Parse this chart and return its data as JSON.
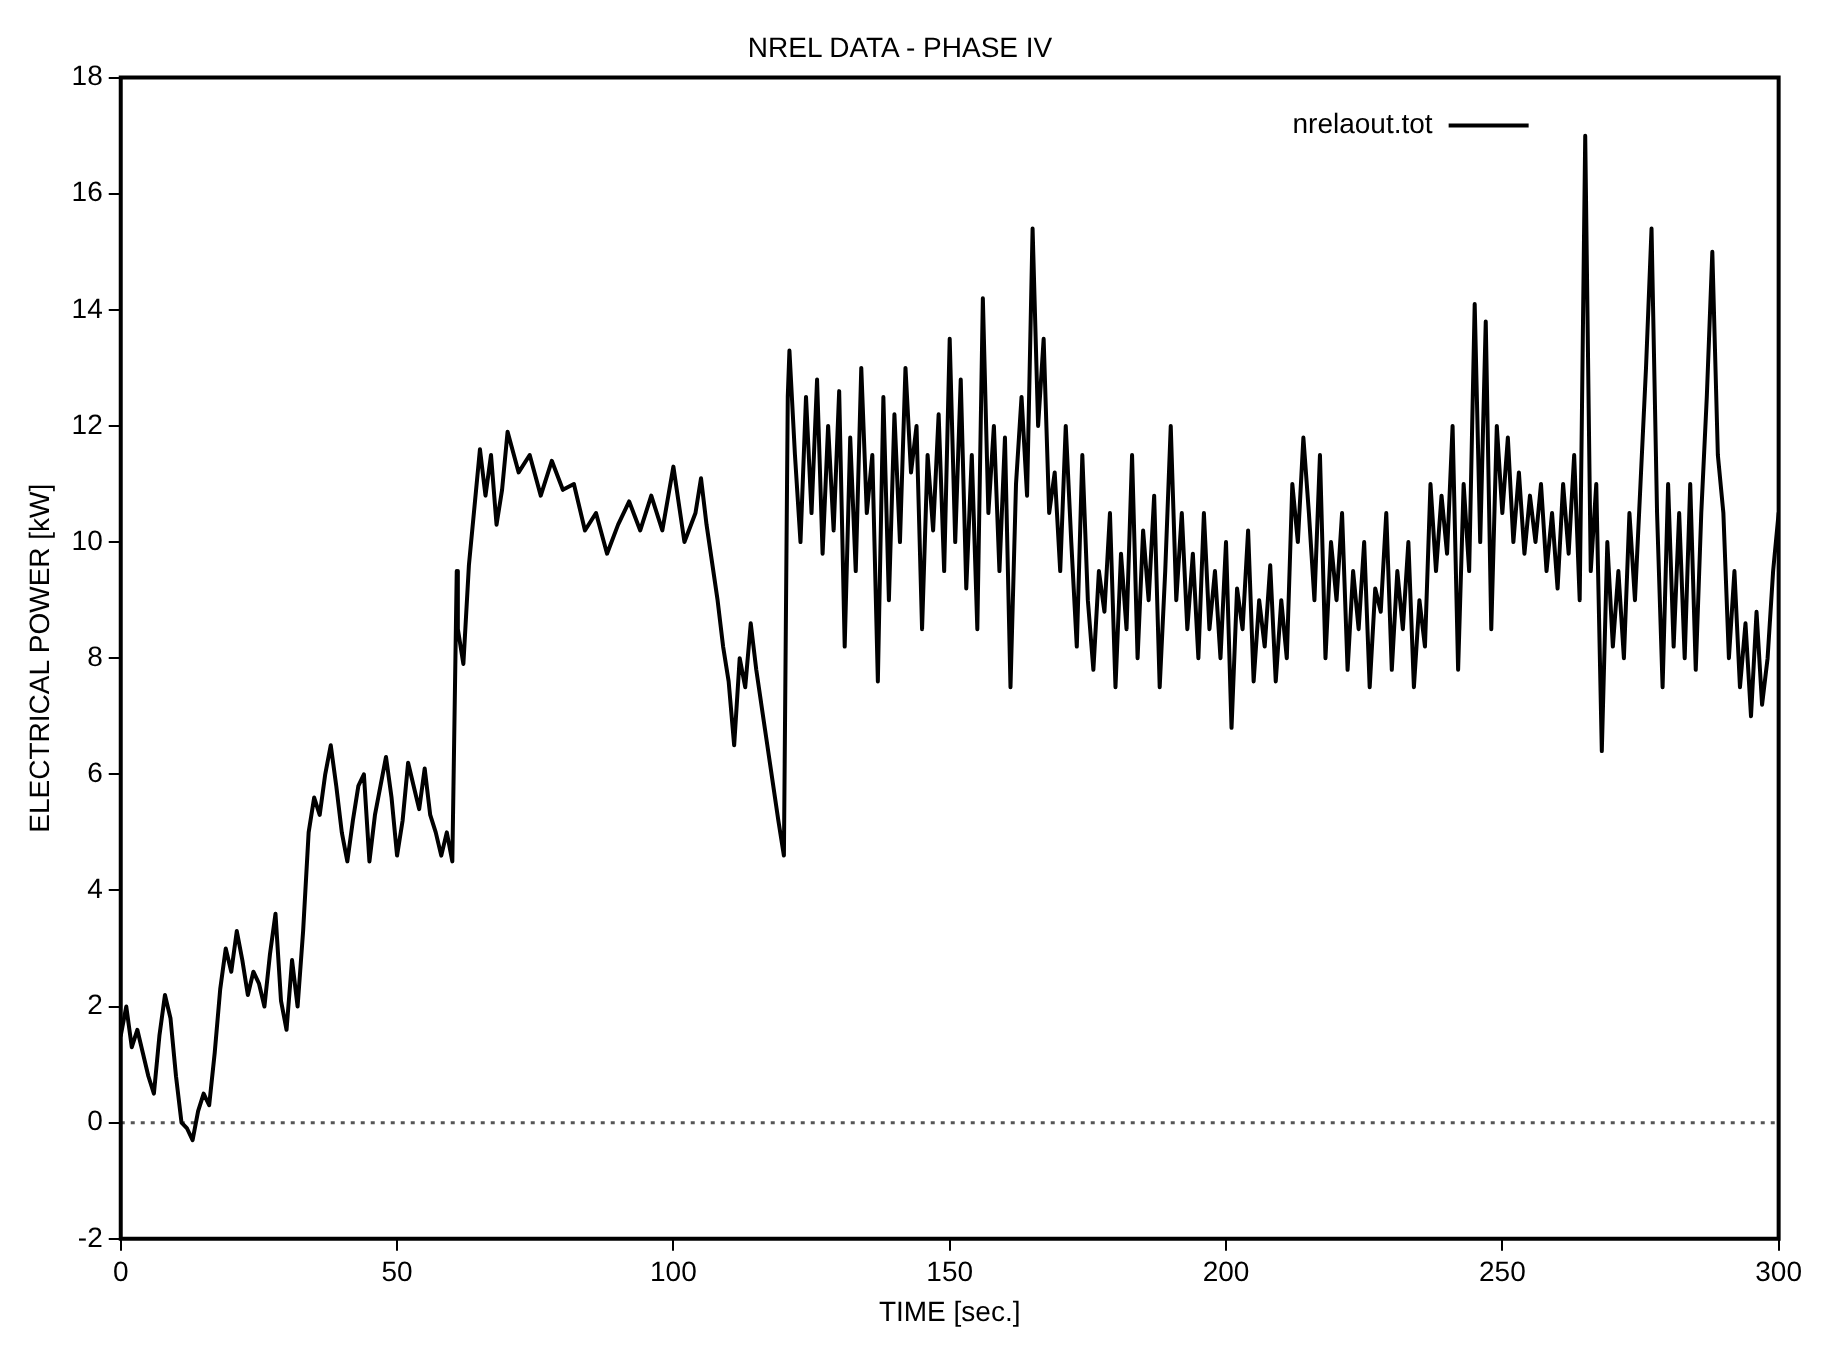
{
  "chart_data": {
    "type": "line",
    "title": "NREL DATA - PHASE IV",
    "xlabel": "TIME [sec.]",
    "ylabel": "ELECTRICAL POWER [kW]",
    "xlim": [
      0,
      300
    ],
    "xticks": [
      0,
      50,
      100,
      150,
      200,
      250,
      300
    ],
    "ylim": [
      -2,
      18
    ],
    "yticks": [
      -2,
      0,
      2,
      4,
      6,
      8,
      10,
      12,
      14,
      16,
      18
    ],
    "grid": false,
    "legend": "top right",
    "marker": "none",
    "line_style": "solid",
    "ref_lines": [
      {
        "axis": "y",
        "value": 0,
        "color": "#555555",
        "line_style": "dotted"
      }
    ],
    "series": [
      {
        "name": "nrelaout.tot",
        "color": "#000000",
        "x": [
          0,
          1,
          2,
          3,
          4,
          5,
          6,
          7,
          8,
          9,
          10,
          11,
          12,
          13,
          14,
          15,
          16,
          17,
          18,
          19,
          20,
          21,
          22,
          23,
          24,
          25,
          26,
          27,
          28,
          29,
          30,
          31,
          32,
          33,
          34,
          35,
          36,
          37,
          38,
          39,
          40,
          41,
          42,
          43,
          44,
          45,
          46,
          47,
          48,
          49,
          50,
          51,
          52,
          53,
          54,
          55,
          56,
          57,
          58,
          59,
          60,
          60.8,
          61,
          62,
          63,
          64,
          65,
          66,
          67,
          68,
          69,
          70,
          72,
          74,
          76,
          78,
          80,
          82,
          84,
          86,
          88,
          90,
          92,
          94,
          96,
          98,
          100,
          102,
          104,
          105,
          106,
          108,
          109,
          110,
          111,
          112,
          113,
          114,
          115,
          117,
          119,
          120,
          120.7,
          121,
          122,
          123,
          124,
          125,
          126,
          127,
          128,
          129,
          130,
          131,
          132,
          133,
          134,
          135,
          136,
          137,
          138,
          139,
          140,
          141,
          142,
          143,
          144,
          145,
          146,
          147,
          148,
          149,
          150,
          151,
          152,
          153,
          154,
          155,
          156,
          157,
          158,
          159,
          160,
          161,
          162,
          163,
          164,
          165,
          166,
          167,
          168,
          169,
          170,
          171,
          172,
          173,
          174,
          175,
          176,
          177,
          178,
          179,
          180,
          181,
          182,
          183,
          184,
          185,
          186,
          187,
          188,
          189,
          190,
          191,
          192,
          193,
          194,
          195,
          196,
          197,
          198,
          199,
          200,
          201,
          202,
          203,
          204,
          205,
          206,
          207,
          208,
          209,
          210,
          211,
          212,
          213,
          214,
          215,
          216,
          217,
          218,
          219,
          220,
          221,
          222,
          223,
          224,
          225,
          226,
          227,
          228,
          229,
          230,
          231,
          232,
          233,
          234,
          235,
          236,
          237,
          238,
          239,
          240,
          241,
          242,
          243,
          244,
          245,
          246,
          247,
          248,
          249,
          250,
          251,
          252,
          253,
          254,
          255,
          256,
          257,
          258,
          259,
          260,
          261,
          262,
          263,
          264,
          265,
          266,
          267,
          268,
          269,
          270,
          271,
          272,
          273,
          274,
          275,
          276,
          277,
          278,
          279,
          280,
          281,
          282,
          283,
          284,
          285,
          286,
          287,
          288,
          289,
          290,
          291,
          292,
          293,
          294,
          295,
          296,
          297,
          298,
          299,
          300
        ],
        "values": [
          1.5,
          2.0,
          1.3,
          1.6,
          1.2,
          0.8,
          0.5,
          1.5,
          2.2,
          1.8,
          0.8,
          0.0,
          -0.1,
          -0.3,
          0.2,
          0.5,
          0.3,
          1.2,
          2.3,
          3.0,
          2.6,
          3.3,
          2.8,
          2.2,
          2.6,
          2.4,
          2.0,
          2.9,
          3.6,
          2.1,
          1.6,
          2.8,
          2.0,
          3.3,
          5.0,
          5.6,
          5.3,
          6.0,
          6.5,
          5.8,
          5.0,
          4.5,
          5.2,
          5.8,
          6.0,
          4.5,
          5.3,
          5.8,
          6.3,
          5.6,
          4.6,
          5.2,
          6.2,
          5.8,
          5.4,
          6.1,
          5.3,
          5.0,
          4.6,
          5.0,
          4.5,
          9.5,
          8.5,
          7.9,
          9.6,
          10.6,
          11.6,
          10.8,
          11.5,
          10.3,
          10.9,
          11.9,
          11.2,
          11.5,
          10.8,
          11.4,
          10.9,
          11.0,
          10.2,
          10.5,
          9.8,
          10.3,
          10.7,
          10.2,
          10.8,
          10.2,
          11.3,
          10.0,
          10.5,
          11.1,
          10.3,
          9.0,
          8.2,
          7.6,
          6.5,
          8.0,
          7.5,
          8.6,
          7.8,
          6.5,
          5.2,
          4.6,
          12.5,
          13.3,
          11.5,
          10.0,
          12.5,
          10.5,
          12.8,
          9.8,
          12.0,
          10.2,
          12.6,
          8.2,
          11.8,
          9.5,
          13.0,
          10.5,
          11.5,
          7.6,
          12.5,
          9.0,
          12.2,
          10.0,
          13.0,
          11.2,
          12.0,
          8.5,
          11.5,
          10.2,
          12.2,
          9.5,
          13.5,
          10.0,
          12.8,
          9.2,
          11.5,
          8.5,
          14.2,
          10.5,
          12.0,
          9.5,
          11.8,
          7.5,
          11.0,
          12.5,
          10.8,
          15.4,
          12.0,
          13.5,
          10.5,
          11.2,
          9.5,
          12.0,
          10.0,
          8.2,
          11.5,
          9.0,
          7.8,
          9.5,
          8.8,
          10.5,
          7.5,
          9.8,
          8.5,
          11.5,
          8.0,
          10.2,
          9.0,
          10.8,
          7.5,
          9.5,
          12.0,
          9.0,
          10.5,
          8.5,
          9.8,
          8.0,
          10.5,
          8.5,
          9.5,
          8.0,
          10.0,
          6.8,
          9.2,
          8.5,
          10.2,
          7.6,
          9.0,
          8.2,
          9.6,
          7.6,
          9.0,
          8.0,
          11.0,
          10.0,
          11.8,
          10.5,
          9.0,
          11.5,
          8.0,
          10.0,
          9.0,
          10.5,
          7.8,
          9.5,
          8.5,
          10.0,
          7.5,
          9.2,
          8.8,
          10.5,
          7.8,
          9.5,
          8.5,
          10.0,
          7.5,
          9.0,
          8.2,
          11.0,
          9.5,
          10.8,
          9.8,
          12.0,
          7.8,
          11.0,
          9.5,
          14.1,
          10.0,
          13.8,
          8.5,
          12.0,
          10.5,
          11.8,
          10.0,
          11.2,
          9.8,
          10.8,
          10.0,
          11.0,
          9.5,
          10.5,
          9.2,
          11.0,
          9.8,
          11.5,
          9.0,
          17.0,
          9.5,
          11.0,
          6.4,
          10.0,
          8.2,
          9.5,
          8.0,
          10.5,
          9.0,
          11.0,
          13.0,
          15.4,
          10.5,
          7.5,
          11.0,
          8.2,
          10.5,
          8.0,
          11.0,
          7.8,
          10.5,
          12.5,
          15.0,
          11.5,
          10.5,
          8.0,
          9.5,
          7.5,
          8.6,
          7.0,
          8.8,
          7.2,
          8.0,
          9.5,
          10.5
        ]
      }
    ]
  }
}
